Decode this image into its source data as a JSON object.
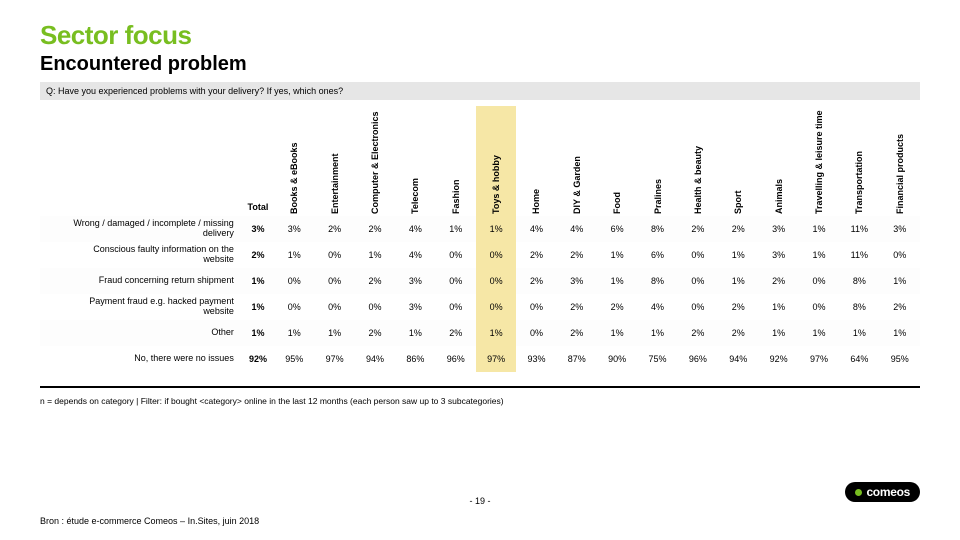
{
  "title": "Sector focus",
  "subtitle": "Encountered problem",
  "question": "Q: Have you experienced problems with your delivery? If yes, which ones?",
  "totalHeader": "Total",
  "highlight_column_index": 5,
  "categories": [
    "Books & eBooks",
    "Entertainment",
    "Computer & Electronics",
    "Telecom",
    "Fashion",
    "Toys & hobby",
    "Home",
    "DIY & Garden",
    "Food",
    "Pralines",
    "Health & beauty",
    "Sport",
    "Animals",
    "Travelling & leisure time",
    "Transportation",
    "Financial products"
  ],
  "rows": [
    {
      "label": "Wrong / damaged / incomplete / missing\ndelivery",
      "total": "3%",
      "values": [
        "3%",
        "2%",
        "2%",
        "4%",
        "1%",
        "1%",
        "4%",
        "4%",
        "6%",
        "8%",
        "2%",
        "2%",
        "3%",
        "1%",
        "11%",
        "3%"
      ]
    },
    {
      "label": "Conscious faulty information on the\nwebsite",
      "total": "2%",
      "values": [
        "1%",
        "0%",
        "1%",
        "4%",
        "0%",
        "0%",
        "2%",
        "2%",
        "1%",
        "6%",
        "0%",
        "1%",
        "3%",
        "1%",
        "11%",
        "0%"
      ]
    },
    {
      "label": "Fraud concerning return shipment",
      "total": "1%",
      "values": [
        "0%",
        "0%",
        "2%",
        "3%",
        "0%",
        "0%",
        "2%",
        "3%",
        "1%",
        "8%",
        "0%",
        "1%",
        "2%",
        "0%",
        "8%",
        "1%"
      ]
    },
    {
      "label": "Payment fraud e.g. hacked payment\nwebsite",
      "total": "1%",
      "values": [
        "0%",
        "0%",
        "0%",
        "3%",
        "0%",
        "0%",
        "0%",
        "2%",
        "2%",
        "4%",
        "0%",
        "2%",
        "1%",
        "0%",
        "8%",
        "2%"
      ]
    },
    {
      "label": "Other",
      "total": "1%",
      "values": [
        "1%",
        "1%",
        "2%",
        "1%",
        "2%",
        "1%",
        "0%",
        "2%",
        "1%",
        "1%",
        "2%",
        "2%",
        "1%",
        "1%",
        "1%",
        "1%"
      ]
    },
    {
      "label": "No, there were no issues",
      "total": "92%",
      "values": [
        "95%",
        "97%",
        "94%",
        "86%",
        "96%",
        "97%",
        "93%",
        "87%",
        "90%",
        "75%",
        "96%",
        "94%",
        "92%",
        "97%",
        "64%",
        "95%"
      ]
    }
  ],
  "footnote": "n = depends on category | Filter: if bought <category> online in the last 12 months (each person saw up to 3 subcategories)",
  "pagenum": "- 19 -",
  "source": "Bron : étude e-commerce Comeos – In.Sites, juin 2018",
  "logo_text": "comeos"
}
